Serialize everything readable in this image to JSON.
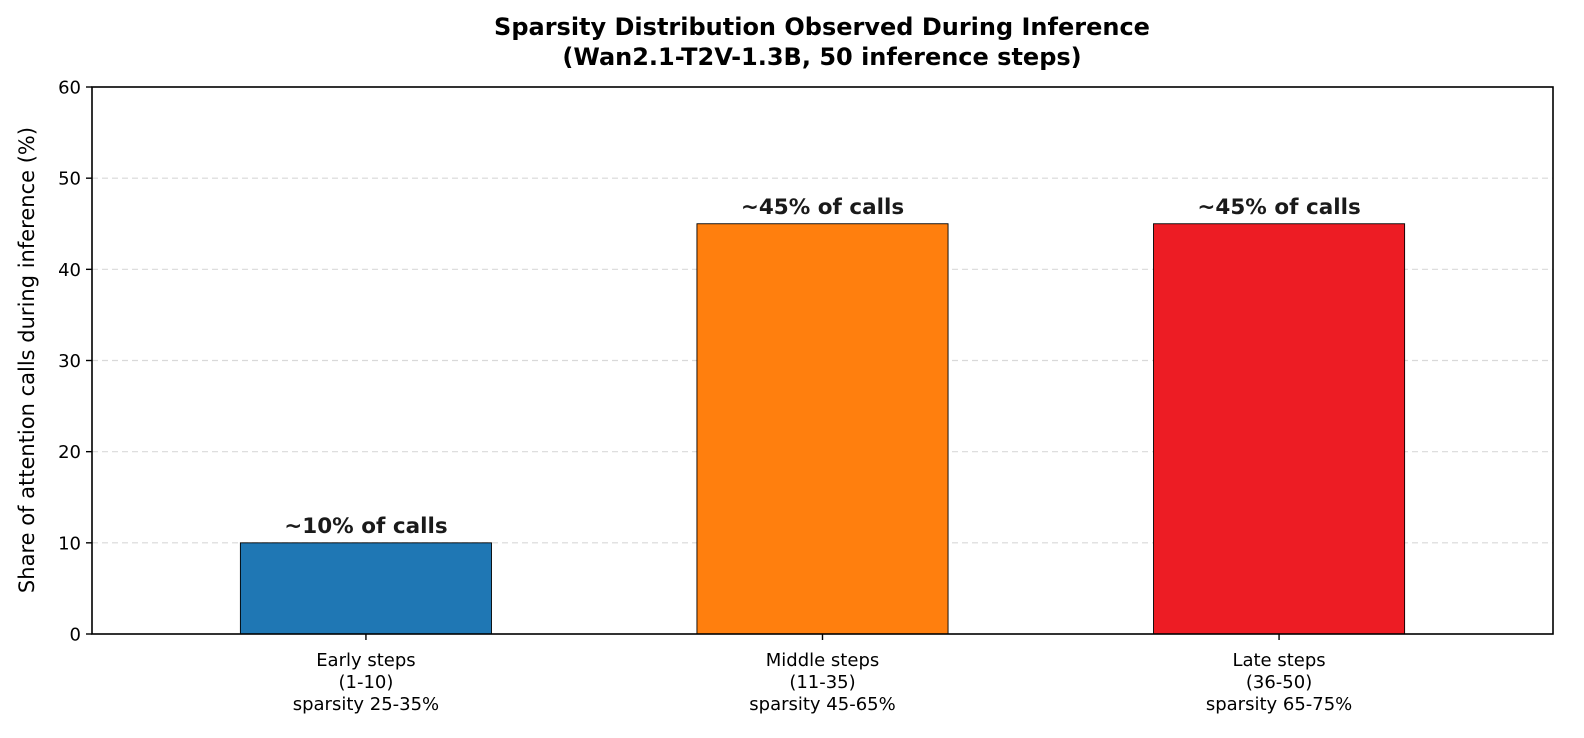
{
  "chart_data": {
    "type": "bar",
    "title": "Sparsity Distribution Observed During Inference",
    "subtitle": "(Wan2.1-T2V-1.3B, 50 inference steps)",
    "xlabel": "",
    "ylabel": "Share of attention calls during inference (%)",
    "ylim": [
      0,
      60
    ],
    "yticks": [
      0,
      10,
      20,
      30,
      40,
      50,
      60
    ],
    "grid": "y-dashed",
    "categories": [
      [
        "Early steps",
        "(1-10)",
        "sparsity 25-35%"
      ],
      [
        "Middle steps",
        "(11-35)",
        "sparsity 45-65%"
      ],
      [
        "Late steps",
        "(36-50)",
        "sparsity 65-75%"
      ]
    ],
    "values": [
      10,
      45,
      45
    ],
    "data_labels": [
      "~10% of calls",
      "~45% of calls",
      "~45% of calls"
    ],
    "colors": [
      "#1f77b4",
      "#ff7f0e",
      "#ed1c24"
    ]
  }
}
